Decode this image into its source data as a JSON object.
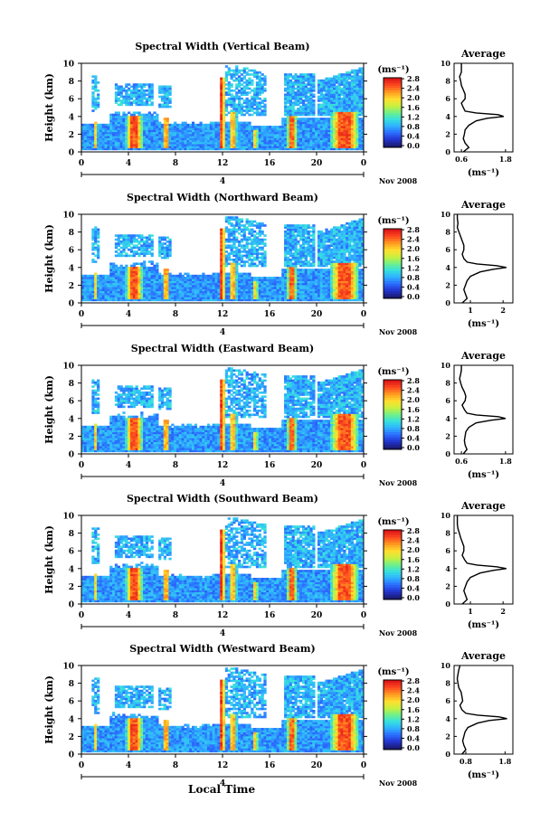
{
  "chart_data": [
    {
      "type": "heatmap",
      "title": "Spectral Width (Vertical Beam)",
      "ylabel": "Height (km)",
      "x_ticks": [
        "0",
        "4",
        "8",
        "12",
        "16",
        "20",
        "0"
      ],
      "y_ticks": [
        "0",
        "2",
        "4",
        "6",
        "8",
        "10"
      ],
      "date_label": "4",
      "month_label": "Nov 2008",
      "unit": "(ms⁻¹)",
      "colorbar_ticks": [
        "0.0",
        "0.4",
        "0.8",
        "1.2",
        "1.6",
        "2.0",
        "2.4",
        "2.8"
      ],
      "profile": {
        "title": "Average",
        "xlabel": "(ms⁻¹)",
        "x_ticks": [
          "0.6",
          "1.8"
        ],
        "xlim": [
          0.4,
          2.0
        ],
        "y_ticks": [
          "0",
          "2",
          "4",
          "6",
          "8",
          "10"
        ],
        "heights": [
          0,
          0.5,
          1,
          1.5,
          2,
          2.5,
          3,
          3.5,
          3.8,
          4,
          4.2,
          4.4,
          4.6,
          5,
          5.5,
          6,
          6.5,
          7,
          7.5,
          8,
          8.5,
          9,
          9.5,
          10
        ],
        "values": [
          0.65,
          0.8,
          0.7,
          0.65,
          0.68,
          0.7,
          0.8,
          1.0,
          1.3,
          1.75,
          1.6,
          1.0,
          0.7,
          0.65,
          0.6,
          0.7,
          0.7,
          0.65,
          0.6,
          0.58,
          0.55,
          0.6,
          0.6,
          0.6
        ]
      }
    },
    {
      "type": "heatmap",
      "title": "Spectral Width (Northward Beam)",
      "ylabel": "Height (km)",
      "x_ticks": [
        "0",
        "4",
        "8",
        "12",
        "16",
        "20",
        "0"
      ],
      "y_ticks": [
        "0",
        "2",
        "4",
        "6",
        "8",
        "10"
      ],
      "date_label": "4",
      "month_label": "Nov 2008",
      "unit": "(ms⁻¹)",
      "colorbar_ticks": [
        "0.0",
        "0.4",
        "0.8",
        "1.2",
        "1.6",
        "2.0",
        "2.4",
        "2.8"
      ],
      "profile": {
        "title": "Average",
        "xlabel": "(ms⁻¹)",
        "x_ticks": [
          "1",
          "2"
        ],
        "xlim": [
          0.5,
          2.3
        ],
        "y_ticks": [
          "0",
          "2",
          "4",
          "6",
          "8",
          "10"
        ],
        "heights": [
          0,
          0.5,
          1,
          1.5,
          2,
          2.5,
          3,
          3.5,
          3.8,
          4,
          4.2,
          4.4,
          4.6,
          5,
          5.5,
          6,
          6.5,
          7,
          7.5,
          8,
          8.5,
          9,
          9.5,
          10
        ],
        "values": [
          0.75,
          0.9,
          0.85,
          0.8,
          0.85,
          0.9,
          1.0,
          1.3,
          1.7,
          2.1,
          1.8,
          1.2,
          0.9,
          0.8,
          0.75,
          0.8,
          0.8,
          0.75,
          0.7,
          0.65,
          0.6,
          0.62,
          0.6,
          0.6
        ]
      }
    },
    {
      "type": "heatmap",
      "title": "Spectral Width (Eastward Beam)",
      "ylabel": "Height (km)",
      "x_ticks": [
        "0",
        "4",
        "8",
        "12",
        "16",
        "20",
        "0"
      ],
      "y_ticks": [
        "0",
        "2",
        "4",
        "6",
        "8",
        "10"
      ],
      "date_label": "4",
      "month_label": "Nov 2008",
      "unit": "(ms⁻¹)",
      "colorbar_ticks": [
        "0.0",
        "0.4",
        "0.8",
        "1.2",
        "1.6",
        "2.0",
        "2.4",
        "2.8"
      ],
      "profile": {
        "title": "Average",
        "xlabel": "(ms⁻¹)",
        "x_ticks": [
          "0.6",
          "1.8"
        ],
        "xlim": [
          0.4,
          2.0
        ],
        "y_ticks": [
          "0",
          "2",
          "4",
          "6",
          "8",
          "10"
        ],
        "heights": [
          0,
          0.5,
          1,
          1.5,
          2,
          2.5,
          3,
          3.5,
          3.8,
          4,
          4.2,
          4.4,
          4.6,
          5,
          5.5,
          6,
          6.5,
          7,
          7.5,
          8,
          8.5,
          9,
          9.5,
          10
        ],
        "values": [
          0.65,
          0.75,
          0.7,
          0.68,
          0.7,
          0.72,
          0.8,
          1.0,
          1.4,
          1.8,
          1.6,
          1.0,
          0.75,
          0.68,
          0.62,
          0.7,
          0.72,
          0.68,
          0.62,
          0.58,
          0.55,
          0.58,
          0.6,
          0.6
        ]
      }
    },
    {
      "type": "heatmap",
      "title": "Spectral Width (Southward Beam)",
      "ylabel": "Height (km)",
      "x_ticks": [
        "0",
        "4",
        "8",
        "12",
        "16",
        "20",
        "0"
      ],
      "y_ticks": [
        "0",
        "2",
        "4",
        "6",
        "8",
        "10"
      ],
      "date_label": "4",
      "month_label": "Nov 2008",
      "unit": "(ms⁻¹)",
      "colorbar_ticks": [
        "0.0",
        "0.4",
        "0.8",
        "1.2",
        "1.6",
        "2.0",
        "2.4",
        "2.8"
      ],
      "profile": {
        "title": "Average",
        "xlabel": "(ms⁻¹)",
        "x_ticks": [
          "1",
          "2"
        ],
        "xlim": [
          0.5,
          2.3
        ],
        "y_ticks": [
          "0",
          "2",
          "4",
          "6",
          "8",
          "10"
        ],
        "heights": [
          0,
          0.5,
          1,
          1.5,
          2,
          2.5,
          3,
          3.5,
          3.8,
          4,
          4.2,
          4.4,
          4.6,
          5,
          5.5,
          6,
          6.5,
          7,
          7.5,
          8,
          8.5,
          9,
          9.5,
          10
        ],
        "values": [
          0.75,
          0.9,
          0.85,
          0.8,
          0.85,
          0.9,
          1.0,
          1.3,
          1.7,
          2.1,
          1.8,
          1.2,
          0.9,
          0.82,
          0.75,
          0.8,
          0.8,
          0.75,
          0.7,
          0.66,
          0.62,
          0.6,
          0.6,
          0.6
        ]
      }
    },
    {
      "type": "heatmap",
      "title": "Spectral Width (Westward Beam)",
      "ylabel": "Height (km)",
      "x_ticks": [
        "0",
        "4",
        "8",
        "12",
        "16",
        "20",
        "0"
      ],
      "y_ticks": [
        "0",
        "2",
        "4",
        "6",
        "8",
        "10"
      ],
      "date_label": "4",
      "month_label": "Nov 2008",
      "unit": "(ms⁻¹)",
      "colorbar_ticks": [
        "0.0",
        "0.4",
        "0.8",
        "1.2",
        "1.6",
        "2.0",
        "2.4",
        "2.8"
      ],
      "profile": {
        "title": "Average",
        "xlabel": "(ms⁻¹)",
        "x_ticks": [
          "0.8",
          "1.8"
        ],
        "xlim": [
          0.5,
          2.0
        ],
        "y_ticks": [
          "0",
          "2",
          "4",
          "6",
          "8",
          "10"
        ],
        "heights": [
          0,
          0.5,
          1,
          1.5,
          2,
          2.5,
          3,
          3.5,
          3.8,
          4,
          4.2,
          4.4,
          4.6,
          5,
          5.5,
          6,
          6.5,
          7,
          7.5,
          8,
          8.5,
          9,
          9.5,
          10
        ],
        "values": [
          0.7,
          0.8,
          0.75,
          0.72,
          0.75,
          0.78,
          0.85,
          1.1,
          1.4,
          1.85,
          1.65,
          1.1,
          0.8,
          0.7,
          0.65,
          0.72,
          0.7,
          0.68,
          0.62,
          0.6,
          0.58,
          0.6,
          0.62,
          0.65
        ]
      }
    }
  ],
  "footer": {
    "xlabel": "Local Time"
  },
  "colormap": [
    "#1a1a6e",
    "#2233cc",
    "#2b6bff",
    "#2fb0ff",
    "#36e0e0",
    "#6ef08a",
    "#c8f040",
    "#ffe030",
    "#ffa020",
    "#ff5020",
    "#e01818"
  ]
}
